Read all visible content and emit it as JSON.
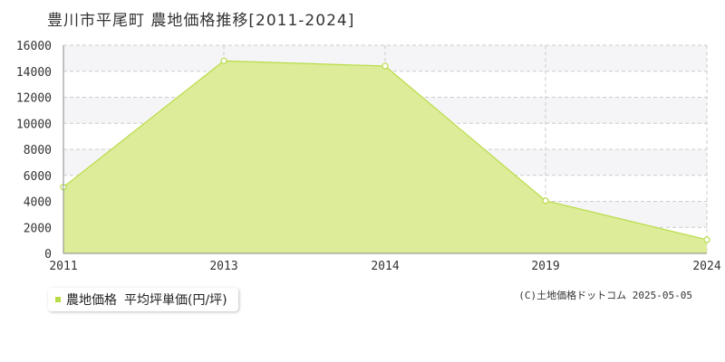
{
  "title": "豊川市平尾町 農地価格推移[2011-2024]",
  "legend": {
    "series_label": "農地価格",
    "unit_label": "平均坪単価(円/坪)"
  },
  "copyright": "(C)土地価格ドットコム 2025-05-05",
  "colors": {
    "fill": "#dcec98",
    "line": "#b8dc48",
    "band": "#f5f5f7",
    "grid": "#cccccc",
    "axis": "#888888"
  },
  "chart_data": {
    "type": "area",
    "x": [
      "2011",
      "2013",
      "2014",
      "2019",
      "2024"
    ],
    "series": [
      {
        "name": "農地価格",
        "values": [
          5100,
          14800,
          14400,
          4050,
          1050
        ]
      }
    ],
    "ylim": [
      0,
      16000
    ],
    "yticks": [
      0,
      2000,
      4000,
      6000,
      8000,
      10000,
      12000,
      14000,
      16000
    ],
    "grid": true,
    "legend_position": "bottom-left"
  }
}
